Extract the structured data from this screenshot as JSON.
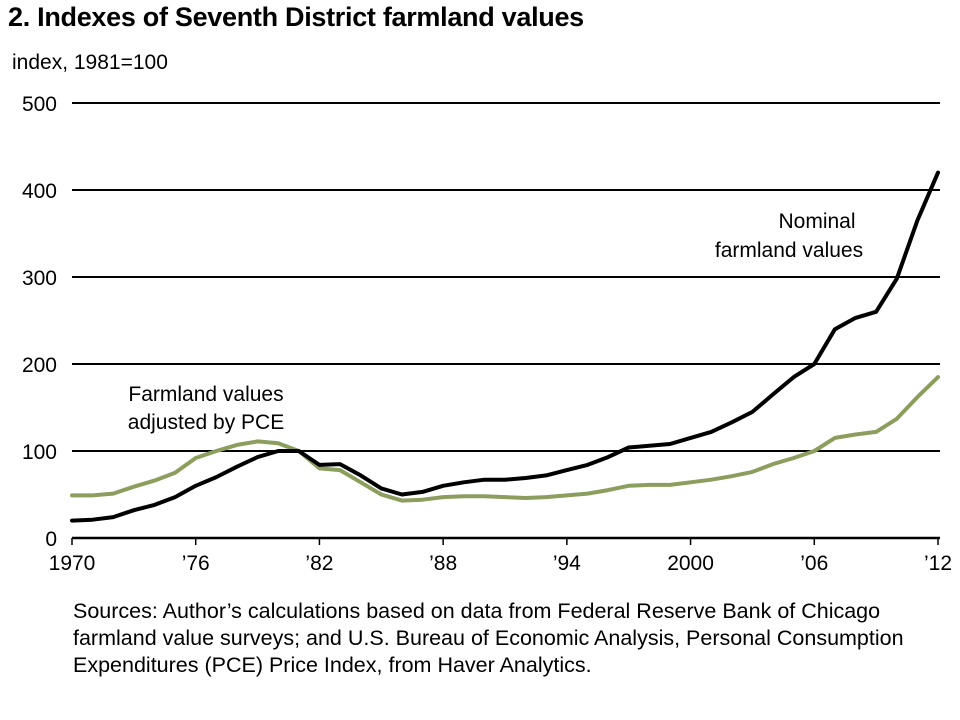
{
  "title": "2. Indexes of Seventh District farmland values",
  "source_note": "Sources: Author’s calculations based on data from Federal Reserve Bank of Chicago farmland value surveys; and U.S. Bureau of Economic Analysis, Personal Consumption Expenditures (PCE) Price Index, from Haver Analytics.",
  "colors": {
    "nominal": "#000000",
    "pce_adjusted": "#8c9e5e",
    "grid": "#000000"
  },
  "chart_data": {
    "type": "line",
    "title": "2. Indexes of Seventh District farmland values",
    "ylabel": "index, 1981=100",
    "xlabel": "",
    "xlim": [
      1970,
      2012
    ],
    "ylim": [
      0,
      500
    ],
    "grid": "horizontal",
    "y_ticks": [
      0,
      100,
      200,
      300,
      400,
      500
    ],
    "y_tick_labels": [
      "0",
      "100",
      "200",
      "300",
      "400",
      "500"
    ],
    "x_ticks": [
      1970,
      1976,
      1982,
      1988,
      1994,
      2000,
      2006,
      2012
    ],
    "x_tick_labels": [
      "1970",
      "’76",
      "’82",
      "’88",
      "’94",
      "2000",
      "’06",
      "’12"
    ],
    "x": [
      1970,
      1971,
      1972,
      1973,
      1974,
      1975,
      1976,
      1977,
      1978,
      1979,
      1980,
      1981,
      1982,
      1983,
      1984,
      1985,
      1986,
      1987,
      1988,
      1989,
      1990,
      1991,
      1992,
      1993,
      1994,
      1995,
      1996,
      1997,
      1998,
      1999,
      2000,
      2001,
      2002,
      2003,
      2004,
      2005,
      2006,
      2007,
      2008,
      2009,
      2010,
      2011,
      2012
    ],
    "series": [
      {
        "name": "Nominal farmland values",
        "color_key": "nominal",
        "values": [
          20,
          21,
          24,
          32,
          38,
          47,
          60,
          70,
          82,
          93,
          100,
          100,
          84,
          85,
          72,
          57,
          50,
          53,
          60,
          64,
          67,
          67,
          69,
          72,
          78,
          84,
          93,
          104,
          106,
          108,
          115,
          122,
          133,
          145,
          165,
          185,
          200,
          240,
          253,
          260,
          298,
          365,
          420
        ]
      },
      {
        "name": "Farmland values adjusted by PCE",
        "color_key": "pce_adjusted",
        "values": [
          49,
          49,
          51,
          59,
          66,
          75,
          92,
          100,
          107,
          111,
          109,
          100,
          80,
          78,
          64,
          50,
          43,
          44,
          47,
          48,
          48,
          47,
          46,
          47,
          49,
          51,
          55,
          60,
          61,
          61,
          64,
          67,
          71,
          76,
          85,
          92,
          100,
          115,
          119,
          122,
          137,
          162,
          185
        ]
      }
    ],
    "annotations": [
      {
        "series": "Nominal farmland values",
        "lines": [
          "Nominal",
          "farmland values"
        ]
      },
      {
        "series": "Farmland values adjusted by PCE",
        "lines": [
          "Farmland values",
          "adjusted by PCE"
        ]
      }
    ]
  }
}
